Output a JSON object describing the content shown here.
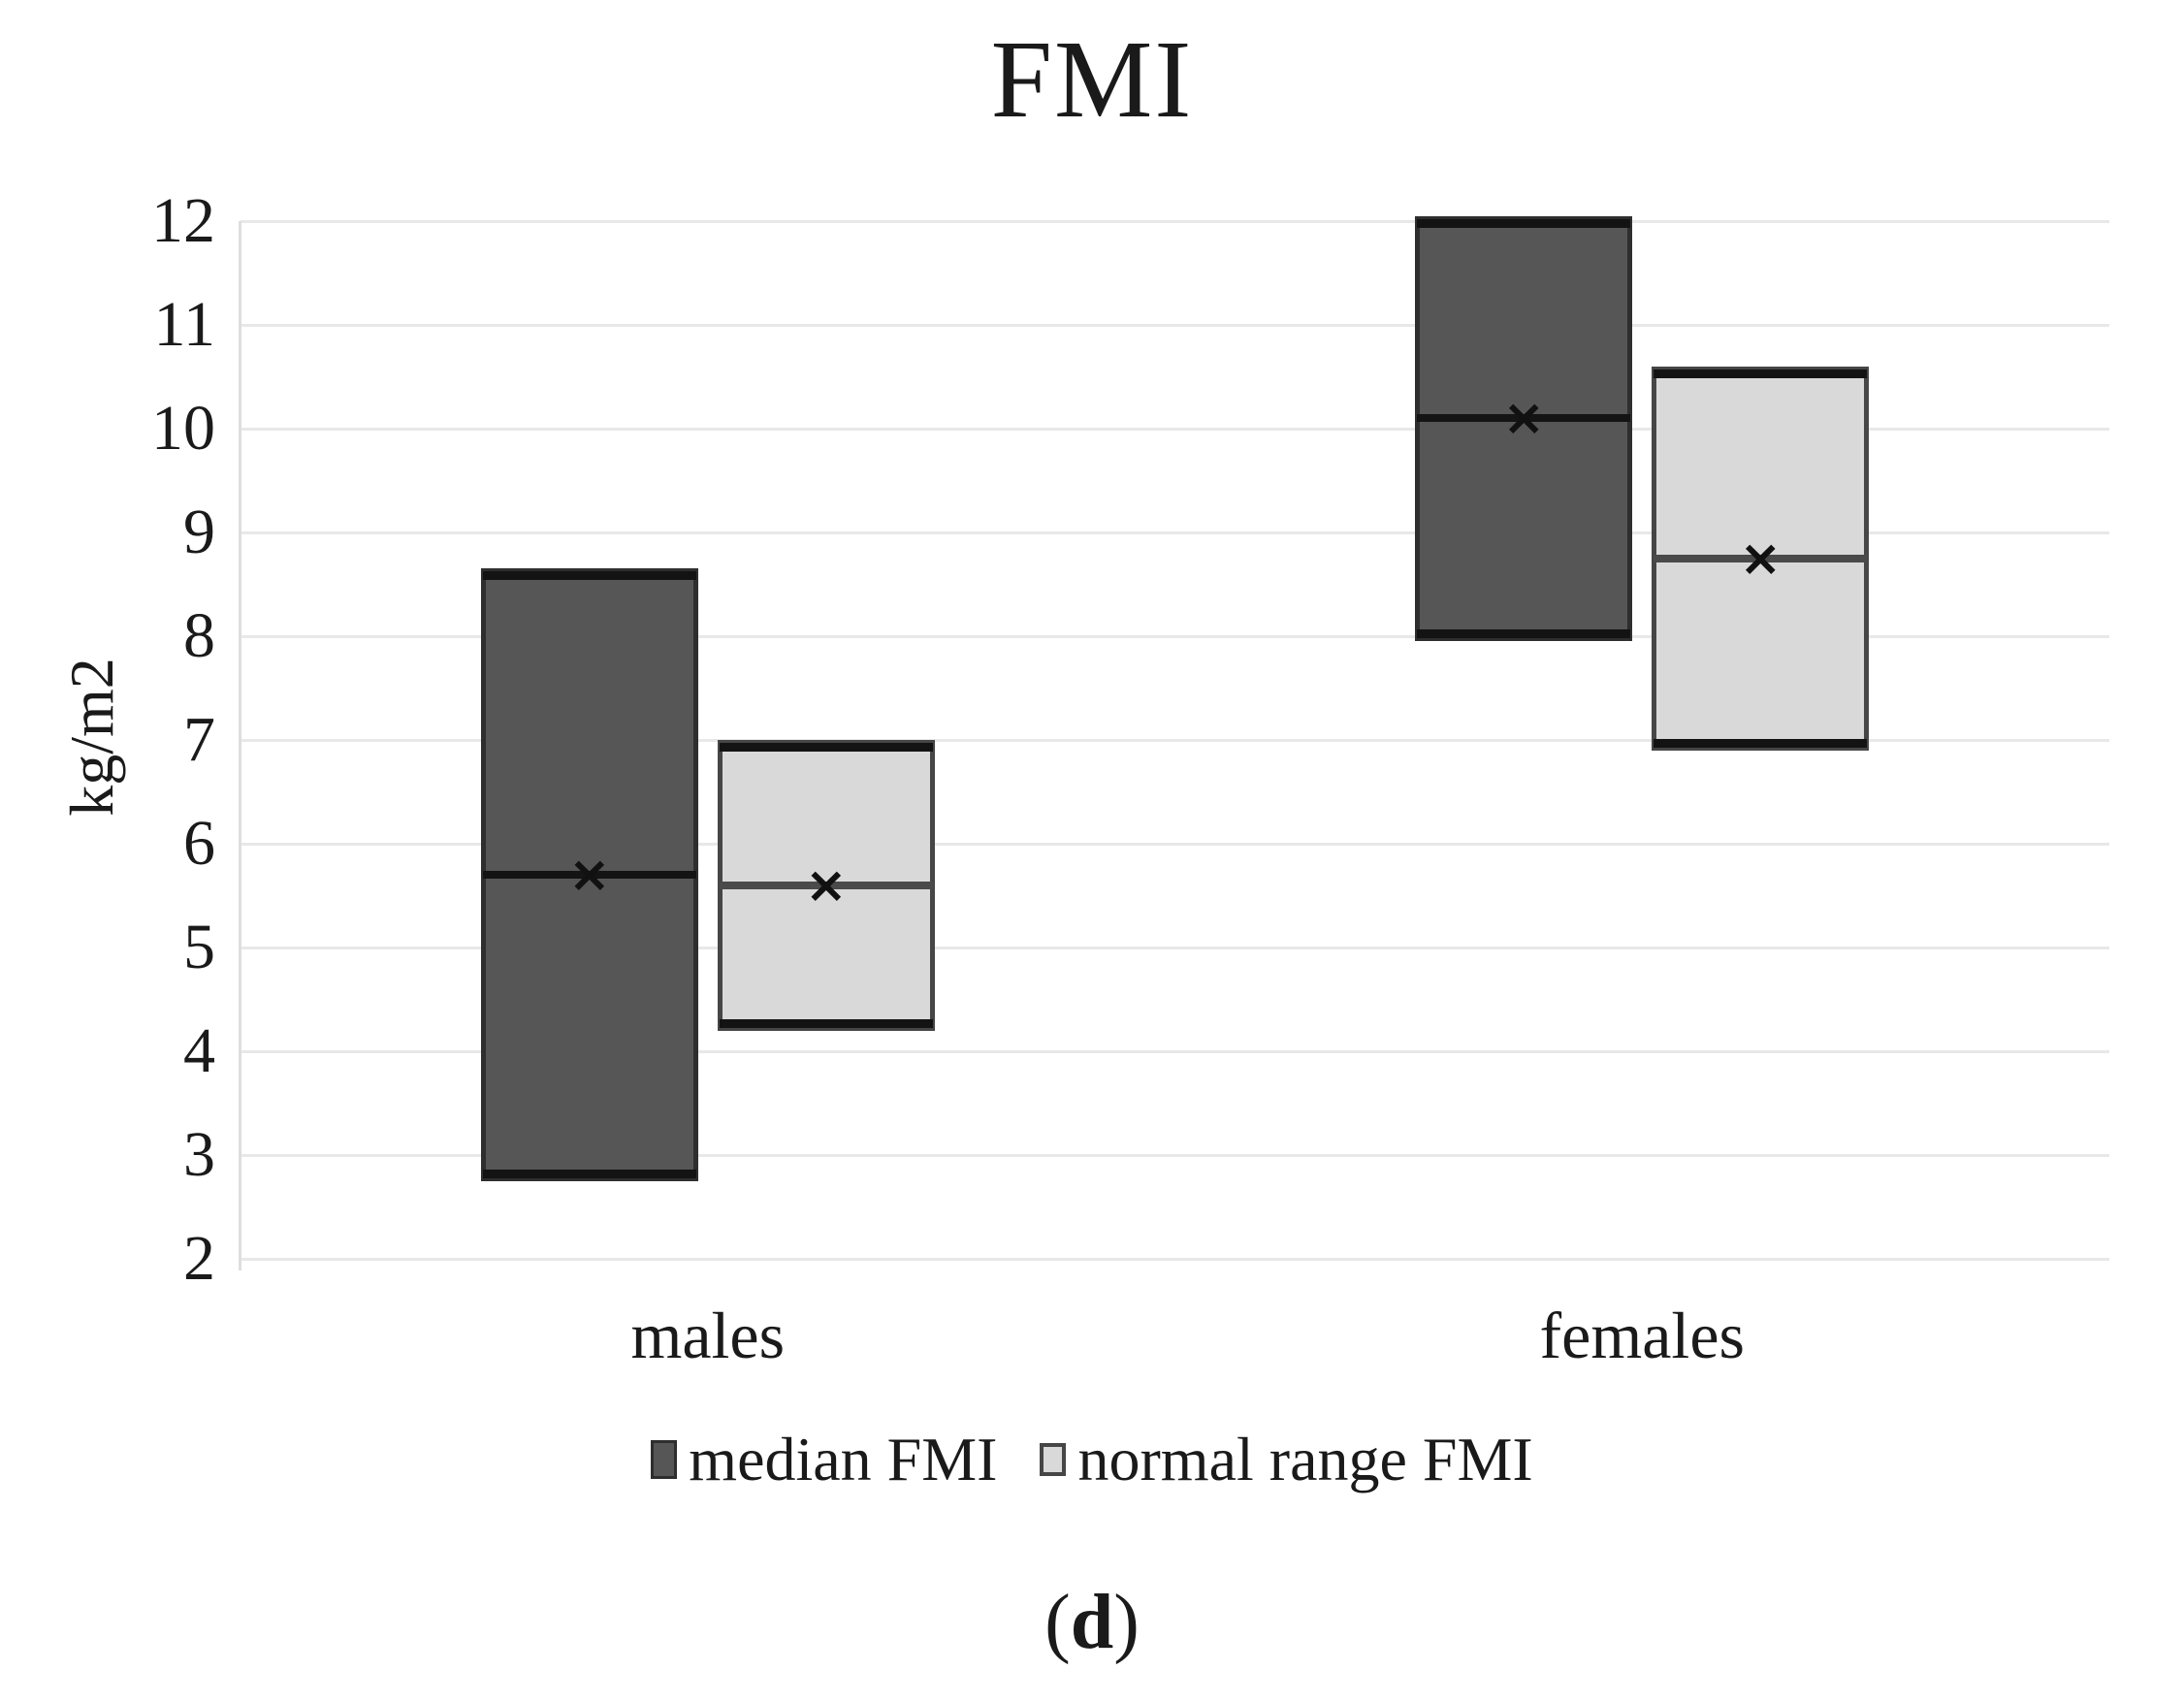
{
  "title": "FMI",
  "caption": {
    "open": "(",
    "letter": "d",
    "close": ")"
  },
  "y_axis": {
    "label": "kg/m2",
    "min": 2,
    "max": 12,
    "ticks": [
      "12",
      "11",
      "10",
      "9",
      "8",
      "7",
      "6",
      "5",
      "4",
      "3",
      "2"
    ]
  },
  "categories": [
    "males",
    "females"
  ],
  "legend": [
    {
      "label": "median FMI",
      "swatch": "dark"
    },
    {
      "label": "normal range FMI",
      "swatch": "light"
    }
  ],
  "colors": {
    "dark_fill": "#565656",
    "dark_border": "#2e2e2e",
    "light_fill": "#d9d9d9",
    "light_border": "#464646",
    "cap": "#131313",
    "median_dark": "#141414",
    "median_light": "#4a4a4a",
    "grid": "#e8e8e8",
    "axis_line": "#dedede",
    "marker": "#111111"
  },
  "chart_data": {
    "type": "box",
    "title": "FMI",
    "ylabel": "kg/m2",
    "ylim": [
      2,
      12
    ],
    "ytick_step": 1,
    "grid": "horizontal",
    "legend_position": "bottom",
    "categories": [
      "males",
      "females"
    ],
    "series": [
      {
        "name": "median FMI",
        "style": "dark",
        "boxes": [
          {
            "category": "males",
            "low": 2.75,
            "high": 8.65,
            "median": 5.7,
            "mean": 5.7
          },
          {
            "category": "females",
            "low": 7.95,
            "high": 12.05,
            "median": 10.1,
            "mean": 10.1
          }
        ]
      },
      {
        "name": "normal range FMI",
        "style": "light",
        "boxes": [
          {
            "category": "males",
            "low": 4.2,
            "high": 7.0,
            "median": 5.6,
            "mean": 5.6
          },
          {
            "category": "females",
            "low": 6.9,
            "high": 10.6,
            "median": 8.75,
            "mean": 8.75
          }
        ]
      }
    ]
  }
}
